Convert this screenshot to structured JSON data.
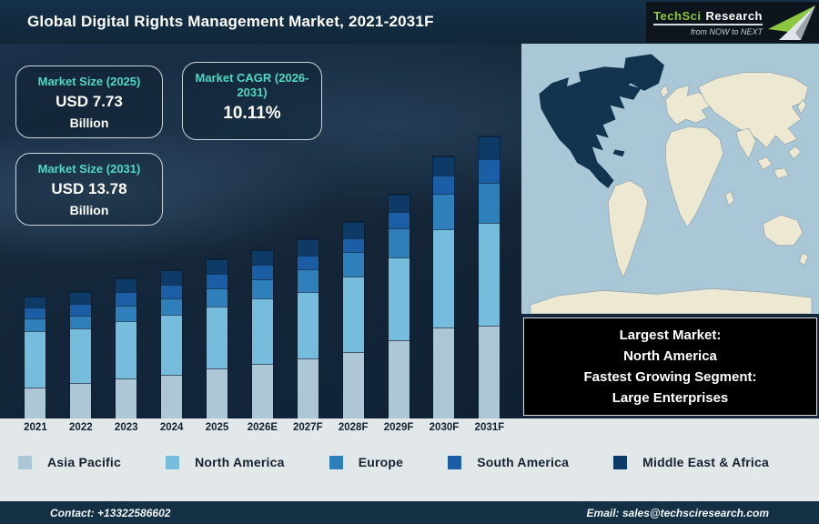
{
  "header": {
    "title": "Global Digital Rights Management Market, 2021-2031F",
    "logo": {
      "brand_primary": "TechSci",
      "brand_secondary": "Research",
      "tagline": "from NOW to NEXT"
    }
  },
  "stats": [
    {
      "label": "Market Size (2025)",
      "value": "USD 7.73",
      "unit": "Billion"
    },
    {
      "label": "Market CAGR (2026-2031)",
      "value": "10.11%"
    },
    {
      "label": "Market Size (2031)",
      "value": "USD 13.78",
      "unit": "Billion"
    }
  ],
  "chart_data": {
    "type": "bar",
    "stacked": true,
    "title": "Global Digital Rights Management Market, 2021-2031F",
    "xlabel": "",
    "ylabel": "",
    "unit": "USD Billion (estimated from bar heights; anchors: 2025 = 7.73, 2031 = 13.78, CAGR 2026-2031 = 10.11%)",
    "ylim": [
      0,
      14.5
    ],
    "grid": false,
    "axes_visible": false,
    "legend_position": "bottom",
    "categories": [
      "2021",
      "2022",
      "2023",
      "2024",
      "2025",
      "2026E",
      "2027F",
      "2028F",
      "2029F",
      "2030F",
      "2031F"
    ],
    "series": [
      {
        "name": "Asia Pacific",
        "color": "#aec7d6",
        "values": [
          1.5,
          1.75,
          1.95,
          2.15,
          2.45,
          2.65,
          2.95,
          3.25,
          3.8,
          4.45,
          4.55
        ]
      },
      {
        "name": "North America",
        "color": "#76bcdc",
        "values": [
          2.75,
          2.65,
          2.8,
          2.95,
          3.0,
          3.2,
          3.25,
          3.7,
          4.05,
          4.8,
          5.0
        ]
      },
      {
        "name": "Europe",
        "color": "#2f80ba",
        "values": [
          0.62,
          0.64,
          0.75,
          0.78,
          0.88,
          0.95,
          1.12,
          1.18,
          1.42,
          1.72,
          1.95
        ]
      },
      {
        "name": "South America",
        "color": "#1b5ea6",
        "values": [
          0.54,
          0.58,
          0.65,
          0.68,
          0.7,
          0.7,
          0.68,
          0.68,
          0.8,
          0.88,
          1.15
        ]
      },
      {
        "name": "Middle East & Africa",
        "color": "#0d3a66",
        "values": [
          0.54,
          0.58,
          0.65,
          0.69,
          0.7,
          0.7,
          0.8,
          0.79,
          0.83,
          0.95,
          1.13
        ]
      }
    ],
    "totals": [
      5.95,
      6.2,
      6.8,
      7.25,
      7.73,
      8.2,
      8.8,
      9.6,
      10.9,
      12.8,
      13.78
    ]
  },
  "map_callout": {
    "lines": [
      "Largest Market:",
      "North America",
      "Fastest Growing Segment:",
      "Large Enterprises"
    ]
  },
  "footer": {
    "contact": "Contact: +13322586602",
    "email": "Email: sales@techsciresearch.com"
  },
  "colors": {
    "accent_teal": "#4fd9c2",
    "logo_green": "#8dc63f",
    "map_ocean": "#a9c7d7",
    "map_land": "#ece8d1",
    "map_highlight": "#12344e",
    "header_bg": "#112a3d",
    "strip_bg": "#e2e7ea",
    "footer_bg": "#143044"
  }
}
